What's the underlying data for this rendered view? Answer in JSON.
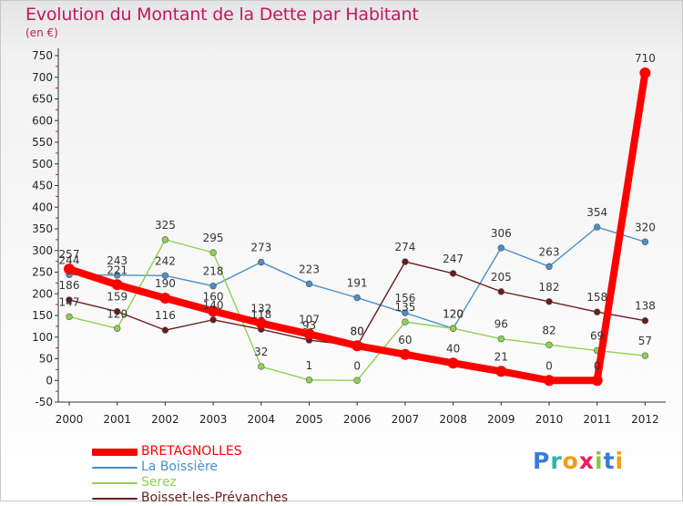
{
  "header": {
    "title": "Evolution du Montant de la Dette par Habitant",
    "subtitle": "(en €)"
  },
  "logo": {
    "text": "Proxiti",
    "colors": [
      "#3a7bd5",
      "#2bb6a8",
      "#f39c12",
      "#e91e63",
      "#8bc34a",
      "#3a7bd5",
      "#f39c12"
    ]
  },
  "chart_data": {
    "type": "line",
    "title": "Evolution du Montant de la Dette par Habitant",
    "subtitle": "(en €)",
    "xlabel": "",
    "ylabel": "",
    "categories": [
      "2000",
      "2001",
      "2002",
      "2003",
      "2004",
      "2005",
      "2006",
      "2007",
      "2008",
      "2009",
      "2010",
      "2011",
      "2012"
    ],
    "ylim": [
      -50,
      750
    ],
    "yticks": [
      -50,
      0,
      50,
      100,
      150,
      200,
      250,
      300,
      350,
      400,
      450,
      500,
      550,
      600,
      650,
      700,
      750
    ],
    "grid": false,
    "legend_position": "bottom-left",
    "series": [
      {
        "name": "BRETAGNOLLES",
        "color": "#ff0000",
        "values": [
          257,
          221,
          190,
          160,
          132,
          107,
          80,
          60,
          40,
          21,
          0,
          0,
          710
        ]
      },
      {
        "name": "La Boissière",
        "color": "#4a90c8",
        "values": [
          244,
          243,
          242,
          218,
          273,
          223,
          191,
          156,
          120,
          306,
          263,
          354,
          320
        ]
      },
      {
        "name": "Serez",
        "color": "#8fd14f",
        "values": [
          147,
          120,
          325,
          295,
          32,
          1,
          0,
          135,
          120,
          96,
          82,
          69,
          57
        ]
      },
      {
        "name": "Boisset-les-Prévanches",
        "color": "#6b1c1c",
        "values": [
          186,
          159,
          116,
          140,
          118,
          93,
          80,
          274,
          247,
          205,
          182,
          158,
          138
        ]
      }
    ]
  }
}
